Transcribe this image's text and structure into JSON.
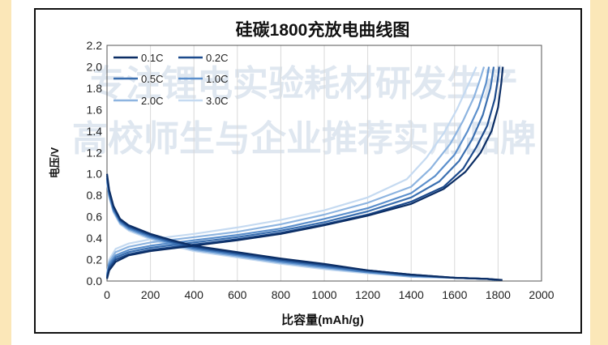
{
  "chart_data": {
    "type": "line",
    "title": "硅碳1800充放电曲线图",
    "xlabel": "比容量(mAh/g)",
    "ylabel": "电压/V",
    "xlim": [
      0,
      2000
    ],
    "ylim": [
      0,
      2.2
    ],
    "xticks": [
      "0",
      "200",
      "400",
      "600",
      "800",
      "1000",
      "1200",
      "1400",
      "1600",
      "1800",
      "2000"
    ],
    "yticks": [
      "0.0",
      "0.2",
      "0.4",
      "0.6",
      "0.8",
      "1.0",
      "1.2",
      "1.4",
      "1.6",
      "1.8",
      "2.0",
      "2.2"
    ],
    "grid": "vertical",
    "legend_position": "top-left",
    "watermark": [
      "专注锂电实验耗材研发生产",
      "高校师生与企业推荐实用品牌"
    ],
    "series": [
      {
        "name": "0.1C",
        "color": "#0b2d64",
        "charge": [
          [
            0,
            0.02
          ],
          [
            10,
            0.1
          ],
          [
            40,
            0.18
          ],
          [
            100,
            0.24
          ],
          [
            200,
            0.28
          ],
          [
            400,
            0.33
          ],
          [
            600,
            0.38
          ],
          [
            800,
            0.44
          ],
          [
            1000,
            0.52
          ],
          [
            1200,
            0.61
          ],
          [
            1400,
            0.72
          ],
          [
            1550,
            0.86
          ],
          [
            1650,
            1.02
          ],
          [
            1720,
            1.2
          ],
          [
            1770,
            1.4
          ],
          [
            1800,
            1.62
          ],
          [
            1815,
            1.85
          ],
          [
            1822,
            2.0
          ]
        ],
        "discharge": [
          [
            0,
            1.0
          ],
          [
            10,
            0.85
          ],
          [
            30,
            0.7
          ],
          [
            60,
            0.58
          ],
          [
            100,
            0.52
          ],
          [
            200,
            0.44
          ],
          [
            300,
            0.38
          ],
          [
            400,
            0.33
          ],
          [
            600,
            0.27
          ],
          [
            800,
            0.21
          ],
          [
            1000,
            0.16
          ],
          [
            1200,
            0.1
          ],
          [
            1400,
            0.06
          ],
          [
            1600,
            0.03
          ],
          [
            1750,
            0.02
          ],
          [
            1820,
            0.01
          ]
        ]
      },
      {
        "name": "0.2C",
        "color": "#1c4a8c",
        "charge": [
          [
            0,
            0.03
          ],
          [
            10,
            0.12
          ],
          [
            40,
            0.2
          ],
          [
            100,
            0.25
          ],
          [
            200,
            0.29
          ],
          [
            400,
            0.34
          ],
          [
            600,
            0.39
          ],
          [
            800,
            0.45
          ],
          [
            1000,
            0.53
          ],
          [
            1200,
            0.62
          ],
          [
            1400,
            0.74
          ],
          [
            1550,
            0.88
          ],
          [
            1640,
            1.05
          ],
          [
            1700,
            1.25
          ],
          [
            1750,
            1.45
          ],
          [
            1785,
            1.7
          ],
          [
            1800,
            1.9
          ],
          [
            1805,
            2.0
          ]
        ],
        "discharge": [
          [
            0,
            0.98
          ],
          [
            10,
            0.84
          ],
          [
            30,
            0.69
          ],
          [
            60,
            0.57
          ],
          [
            100,
            0.51
          ],
          [
            200,
            0.43
          ],
          [
            300,
            0.37
          ],
          [
            400,
            0.32
          ],
          [
            600,
            0.26
          ],
          [
            800,
            0.2
          ],
          [
            1000,
            0.15
          ],
          [
            1200,
            0.1
          ],
          [
            1400,
            0.06
          ],
          [
            1600,
            0.03
          ],
          [
            1750,
            0.02
          ],
          [
            1810,
            0.01
          ]
        ]
      },
      {
        "name": "0.5C",
        "color": "#3a6fb0",
        "charge": [
          [
            0,
            0.04
          ],
          [
            10,
            0.14
          ],
          [
            40,
            0.22
          ],
          [
            100,
            0.27
          ],
          [
            200,
            0.31
          ],
          [
            400,
            0.36
          ],
          [
            600,
            0.41
          ],
          [
            800,
            0.47
          ],
          [
            1000,
            0.55
          ],
          [
            1200,
            0.65
          ],
          [
            1400,
            0.78
          ],
          [
            1530,
            0.93
          ],
          [
            1620,
            1.12
          ],
          [
            1680,
            1.32
          ],
          [
            1730,
            1.55
          ],
          [
            1765,
            1.8
          ],
          [
            1780,
            2.0
          ]
        ],
        "discharge": [
          [
            0,
            0.96
          ],
          [
            10,
            0.82
          ],
          [
            30,
            0.67
          ],
          [
            60,
            0.56
          ],
          [
            100,
            0.5
          ],
          [
            200,
            0.42
          ],
          [
            300,
            0.36
          ],
          [
            400,
            0.31
          ],
          [
            600,
            0.25
          ],
          [
            800,
            0.19
          ],
          [
            1000,
            0.14
          ],
          [
            1200,
            0.09
          ],
          [
            1400,
            0.05
          ],
          [
            1600,
            0.03
          ],
          [
            1750,
            0.02
          ],
          [
            1800,
            0.01
          ]
        ]
      },
      {
        "name": "1.0C",
        "color": "#5b8fcc",
        "charge": [
          [
            0,
            0.05
          ],
          [
            10,
            0.16
          ],
          [
            40,
            0.24
          ],
          [
            100,
            0.29
          ],
          [
            200,
            0.33
          ],
          [
            400,
            0.38
          ],
          [
            600,
            0.43
          ],
          [
            800,
            0.49
          ],
          [
            1000,
            0.58
          ],
          [
            1200,
            0.68
          ],
          [
            1400,
            0.82
          ],
          [
            1510,
            0.98
          ],
          [
            1600,
            1.18
          ],
          [
            1660,
            1.4
          ],
          [
            1710,
            1.62
          ],
          [
            1745,
            1.85
          ],
          [
            1758,
            2.0
          ]
        ],
        "discharge": [
          [
            0,
            0.95
          ],
          [
            10,
            0.8
          ],
          [
            30,
            0.66
          ],
          [
            60,
            0.55
          ],
          [
            100,
            0.49
          ],
          [
            200,
            0.41
          ],
          [
            300,
            0.35
          ],
          [
            400,
            0.3
          ],
          [
            600,
            0.24
          ],
          [
            800,
            0.18
          ],
          [
            1000,
            0.13
          ],
          [
            1200,
            0.08
          ],
          [
            1400,
            0.05
          ],
          [
            1600,
            0.03
          ],
          [
            1750,
            0.02
          ],
          [
            1790,
            0.01
          ]
        ]
      },
      {
        "name": "2.0C",
        "color": "#8db4e0",
        "charge": [
          [
            0,
            0.06
          ],
          [
            10,
            0.18
          ],
          [
            40,
            0.27
          ],
          [
            100,
            0.32
          ],
          [
            200,
            0.36
          ],
          [
            400,
            0.41
          ],
          [
            600,
            0.46
          ],
          [
            800,
            0.53
          ],
          [
            1000,
            0.62
          ],
          [
            1200,
            0.73
          ],
          [
            1400,
            0.88
          ],
          [
            1490,
            1.05
          ],
          [
            1580,
            1.28
          ],
          [
            1640,
            1.5
          ],
          [
            1690,
            1.72
          ],
          [
            1720,
            1.9
          ],
          [
            1735,
            2.0
          ]
        ],
        "discharge": [
          [
            0,
            0.93
          ],
          [
            10,
            0.79
          ],
          [
            30,
            0.65
          ],
          [
            60,
            0.54
          ],
          [
            100,
            0.48
          ],
          [
            200,
            0.4
          ],
          [
            300,
            0.34
          ],
          [
            400,
            0.29
          ],
          [
            600,
            0.23
          ],
          [
            800,
            0.17
          ],
          [
            1000,
            0.12
          ],
          [
            1200,
            0.08
          ],
          [
            1400,
            0.04
          ],
          [
            1600,
            0.03
          ],
          [
            1750,
            0.02
          ],
          [
            1780,
            0.01
          ]
        ]
      },
      {
        "name": "3.0C",
        "color": "#c5daf1",
        "charge": [
          [
            0,
            0.07
          ],
          [
            10,
            0.2
          ],
          [
            40,
            0.3
          ],
          [
            100,
            0.35
          ],
          [
            200,
            0.39
          ],
          [
            400,
            0.44
          ],
          [
            600,
            0.5
          ],
          [
            800,
            0.57
          ],
          [
            1000,
            0.66
          ],
          [
            1200,
            0.78
          ],
          [
            1380,
            0.95
          ],
          [
            1470,
            1.15
          ],
          [
            1550,
            1.38
          ],
          [
            1610,
            1.6
          ],
          [
            1660,
            1.82
          ],
          [
            1700,
            2.0
          ]
        ],
        "discharge": [
          [
            0,
            0.92
          ],
          [
            10,
            0.78
          ],
          [
            30,
            0.64
          ],
          [
            60,
            0.53
          ],
          [
            100,
            0.47
          ],
          [
            200,
            0.39
          ],
          [
            300,
            0.33
          ],
          [
            400,
            0.28
          ],
          [
            600,
            0.22
          ],
          [
            800,
            0.16
          ],
          [
            1000,
            0.11
          ],
          [
            1200,
            0.07
          ],
          [
            1400,
            0.04
          ],
          [
            1600,
            0.03
          ],
          [
            1750,
            0.02
          ],
          [
            1770,
            0.01
          ]
        ]
      }
    ]
  }
}
